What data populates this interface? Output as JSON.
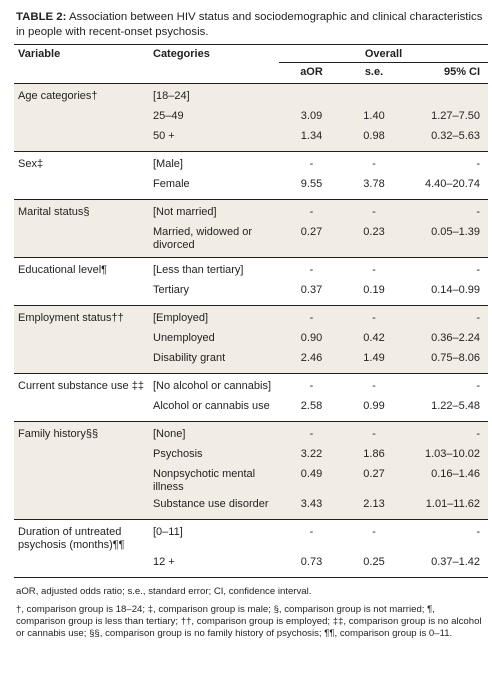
{
  "caption": {
    "label": "TABLE 2:",
    "text": " Association between HIV status and sociodemographic and clinical characteristics in people with recent-onset psychosis."
  },
  "headers": {
    "variable": "Variable",
    "categories": "Categories",
    "overall": "Overall",
    "aor": "aOR",
    "se": "s.e.",
    "ci": "95% CI"
  },
  "groups": [
    {
      "variable": "Age categories†",
      "rows": [
        {
          "category": "[18–24]",
          "aor": "",
          "se": "",
          "ci": ""
        },
        {
          "category": "25–49",
          "aor": "3.09",
          "se": "1.40",
          "ci": "1.27–7.50"
        },
        {
          "category": "50 +",
          "aor": "1.34",
          "se": "0.98",
          "ci": "0.32–5.63"
        }
      ]
    },
    {
      "variable": "Sex‡",
      "rows": [
        {
          "category": "[Male]",
          "aor": "-",
          "se": "-",
          "ci": "-"
        },
        {
          "category": "Female",
          "aor": "9.55",
          "se": "3.78",
          "ci": "4.40–20.74"
        }
      ]
    },
    {
      "variable": "Marital status§",
      "rows": [
        {
          "category": "[Not married]",
          "aor": "-",
          "se": "-",
          "ci": "-"
        },
        {
          "category": "Married, widowed or divorced",
          "aor": "0.27",
          "se": "0.23",
          "ci": "0.05–1.39"
        }
      ]
    },
    {
      "variable": "Educational level¶",
      "rows": [
        {
          "category": "[Less than tertiary]",
          "aor": "-",
          "se": "-",
          "ci": "-"
        },
        {
          "category": "Tertiary",
          "aor": "0.37",
          "se": "0.19",
          "ci": "0.14–0.99"
        }
      ]
    },
    {
      "variable": "Employment status††",
      "rows": [
        {
          "category": "[Employed]",
          "aor": "-",
          "se": "-",
          "ci": "-"
        },
        {
          "category": "Unemployed",
          "aor": "0.90",
          "se": "0.42",
          "ci": "0.36–2.24"
        },
        {
          "category": "Disability grant",
          "aor": "2.46",
          "se": "1.49",
          "ci": "0.75–8.06"
        }
      ]
    },
    {
      "variable": "Current substance use ‡‡",
      "rows": [
        {
          "category": "[No alcohol or cannabis]",
          "aor": "-",
          "se": "-",
          "ci": "-"
        },
        {
          "category": "Alcohol or cannabis use",
          "aor": "2.58",
          "se": "0.99",
          "ci": "1.22–5.48"
        }
      ]
    },
    {
      "variable": "Family history§§",
      "rows": [
        {
          "category": "[None]",
          "aor": "-",
          "se": "-",
          "ci": "-"
        },
        {
          "category": "Psychosis",
          "aor": "3.22",
          "se": "1.86",
          "ci": "1.03–10.02"
        },
        {
          "category": "Nonpsychotic mental illness",
          "aor": "0.49",
          "se": "0.27",
          "ci": "0.16–1.46"
        },
        {
          "category": "Substance use disorder",
          "aor": "3.43",
          "se": "2.13",
          "ci": "1.01–11.62"
        }
      ]
    },
    {
      "variable": "Duration of untreated psychosis (months)¶¶",
      "rows": [
        {
          "category": "[0–11]",
          "aor": "-",
          "se": "-",
          "ci": "-"
        },
        {
          "category": "12 +",
          "aor": "0.73",
          "se": "0.25",
          "ci": "0.37–1.42"
        }
      ]
    }
  ],
  "footnotes": {
    "abbrev": "aOR, adjusted odds ratio; s.e., standard error; CI, confidence interval.",
    "symbols": "†, comparison group is 18–24; ‡, comparison group is male; §, comparison group is not married; ¶, comparison group is less than tertiary; ††, comparison group is employed; ‡‡, comparison group is no alcohol or cannabis use; §§, comparison group is no family history of psychosis; ¶¶, comparison group is 0–11."
  },
  "colors": {
    "shade": "#f1ede4",
    "rule": "#231f20",
    "text": "#231f20"
  }
}
